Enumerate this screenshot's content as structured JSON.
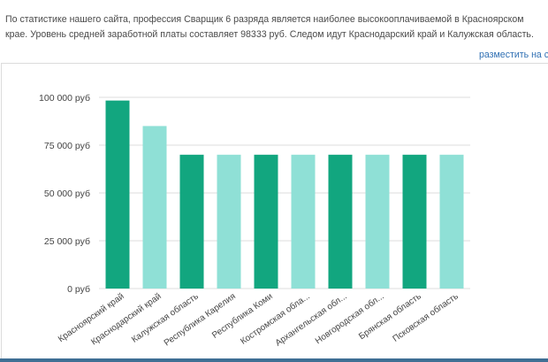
{
  "intro_text": "По статистике нашего сайта, профессия Сварщик 6 разряда является наиболее высокооплачиваемой в Красноярском крае. Уровень средней заработной платы составляет 98333 руб. Следом идут Краснодарский край и Калужская область.",
  "embed_link": "разместить на са",
  "colors": {
    "dark": "#12a67f",
    "light": "#8fe0d6",
    "grid": "#dedede",
    "bottom_bar": "#3f6f94"
  },
  "chart_data": {
    "type": "bar",
    "categories": [
      "Красноярский край",
      "Краснодарский край",
      "Калужская область",
      "Республика Карелия",
      "Республика Коми",
      "Костромская обла...",
      "Архангельская обл...",
      "Новгородская обл...",
      "Брянская область",
      "Псковская область"
    ],
    "values": [
      98333,
      85000,
      70000,
      70000,
      70000,
      70000,
      70000,
      70000,
      70000,
      70000
    ],
    "bar_colors": [
      "dark",
      "light",
      "dark",
      "light",
      "dark",
      "light",
      "dark",
      "light",
      "dark",
      "light"
    ],
    "yticks": [
      0,
      25000,
      50000,
      75000,
      100000
    ],
    "ytick_labels": [
      "0 руб",
      "25 000 руб",
      "50 000 руб",
      "75 000 руб",
      "100 000 руб"
    ],
    "ylim": [
      0,
      100000
    ],
    "grid": true,
    "legend": false
  }
}
